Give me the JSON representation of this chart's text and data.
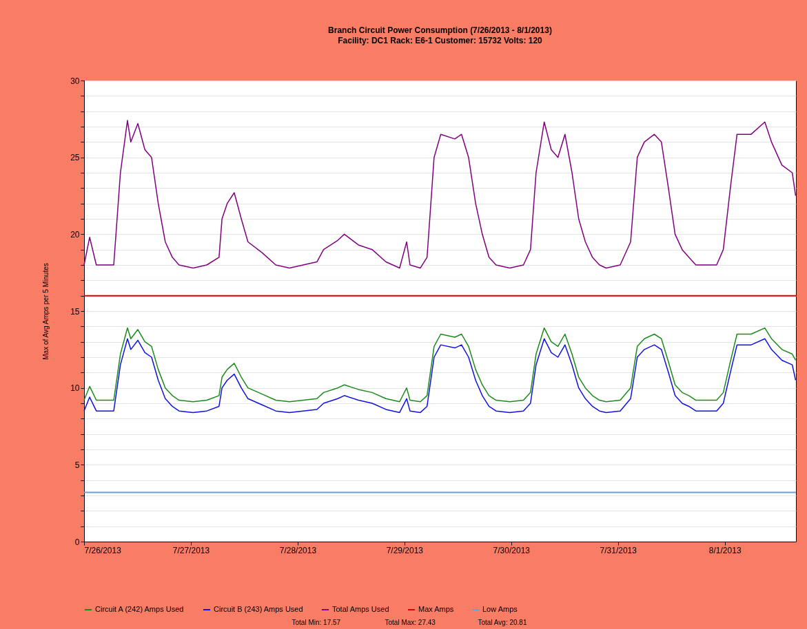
{
  "chart_data": {
    "type": "line",
    "title": "Branch Circuit Power Consumption (7/26/2013 - 8/1/2013)",
    "subtitle": "Facility: DC1  Rack: E6-1  Customer: 15732  Volts: 120",
    "ylabel": "Max of Avg Amps per 5 Minutes",
    "x": [
      "2013-07-26T00:00",
      "2013-07-26T01:15",
      "2013-07-26T02:45",
      "2013-07-26T06:40",
      "2013-07-26T08:10",
      "2013-07-26T09:45",
      "2013-07-26T10:30",
      "2013-07-26T12:05",
      "2013-07-26T13:40",
      "2013-07-26T15:10",
      "2013-07-26T16:40",
      "2013-07-26T18:15",
      "2013-07-26T19:50",
      "2013-07-26T21:20",
      "2013-07-27T00:30",
      "2013-07-27T03:35",
      "2013-07-27T06:20",
      "2013-07-27T07:00",
      "2013-07-27T08:10",
      "2013-07-27T09:45",
      "2013-07-27T11:20",
      "2013-07-27T12:50",
      "2013-07-27T16:00",
      "2013-07-27T19:05",
      "2013-07-27T22:10",
      "2013-07-28T01:15",
      "2013-07-28T04:20",
      "2013-07-28T05:50",
      "2013-07-28T09:00",
      "2013-07-28T10:30",
      "2013-07-28T13:40",
      "2013-07-28T16:45",
      "2013-07-28T19:50",
      "2013-07-28T22:55",
      "2013-07-29T00:30",
      "2013-07-29T01:15",
      "2013-07-29T03:35",
      "2013-07-29T05:05",
      "2013-07-29T06:40",
      "2013-07-29T08:10",
      "2013-07-29T11:20",
      "2013-07-29T12:50",
      "2013-07-29T14:25",
      "2013-07-29T16:00",
      "2013-07-29T17:30",
      "2013-07-29T19:00",
      "2013-07-29T20:35",
      "2013-07-29T23:40",
      "2013-07-30T02:45",
      "2013-07-30T04:20",
      "2013-07-30T05:35",
      "2013-07-30T07:25",
      "2013-07-30T09:00",
      "2013-07-30T10:30",
      "2013-07-30T12:05",
      "2013-07-30T13:40",
      "2013-07-30T15:10",
      "2013-07-30T16:40",
      "2013-07-30T18:15",
      "2013-07-30T19:50",
      "2013-07-30T21:20",
      "2013-07-31T00:30",
      "2013-07-31T02:50",
      "2013-07-31T04:20",
      "2013-07-31T05:55",
      "2013-07-31T08:10",
      "2013-07-31T09:45",
      "2013-07-31T11:20",
      "2013-07-31T12:50",
      "2013-07-31T14:25",
      "2013-07-31T15:55",
      "2013-07-31T17:30",
      "2013-07-31T22:10",
      "2013-07-31T23:40",
      "2013-08-01T01:15",
      "2013-08-01T02:45",
      "2013-08-01T05:55",
      "2013-08-01T09:00",
      "2013-08-01T10:30",
      "2013-08-01T12:50",
      "2013-08-01T15:10",
      "2013-08-01T15:55"
    ],
    "series": [
      {
        "name": "Circuit A (242) Amps Used",
        "color": "#1a8a1a",
        "values": [
          9.2,
          10.1,
          9.2,
          9.2,
          12.2,
          13.9,
          13.2,
          13.8,
          13.0,
          12.7,
          11.2,
          10.0,
          9.5,
          9.2,
          9.1,
          9.2,
          9.5,
          10.7,
          11.2,
          11.6,
          10.7,
          10.0,
          9.6,
          9.2,
          9.1,
          9.2,
          9.3,
          9.7,
          10.0,
          10.2,
          9.9,
          9.7,
          9.3,
          9.1,
          10.0,
          9.2,
          9.1,
          9.5,
          12.7,
          13.5,
          13.3,
          13.5,
          12.7,
          11.2,
          10.2,
          9.5,
          9.2,
          9.1,
          9.2,
          9.7,
          12.2,
          13.9,
          13.0,
          12.7,
          13.5,
          12.2,
          10.7,
          10.0,
          9.5,
          9.2,
          9.1,
          9.2,
          10.0,
          12.7,
          13.2,
          13.5,
          13.2,
          11.7,
          10.2,
          9.7,
          9.5,
          9.2,
          9.2,
          9.7,
          11.7,
          13.5,
          13.5,
          13.9,
          13.2,
          12.5,
          12.2,
          11.8
        ]
      },
      {
        "name": "Circuit B (243) Amps Used",
        "color": "#1010e0",
        "values": [
          8.5,
          9.4,
          8.5,
          8.5,
          11.5,
          13.2,
          12.5,
          13.1,
          12.3,
          12.0,
          10.5,
          9.3,
          8.8,
          8.5,
          8.4,
          8.5,
          8.8,
          10.0,
          10.5,
          10.9,
          10.0,
          9.3,
          8.9,
          8.5,
          8.4,
          8.5,
          8.6,
          9.0,
          9.3,
          9.5,
          9.2,
          9.0,
          8.6,
          8.4,
          9.3,
          8.5,
          8.4,
          8.8,
          12.0,
          12.8,
          12.6,
          12.8,
          12.0,
          10.5,
          9.5,
          8.8,
          8.5,
          8.4,
          8.5,
          9.0,
          11.5,
          13.2,
          12.3,
          12.0,
          12.8,
          11.5,
          10.0,
          9.3,
          8.8,
          8.5,
          8.4,
          8.5,
          9.3,
          12.0,
          12.5,
          12.8,
          12.5,
          11.0,
          9.5,
          9.0,
          8.8,
          8.5,
          8.5,
          9.0,
          11.0,
          12.8,
          12.8,
          13.2,
          12.5,
          11.8,
          11.5,
          10.5
        ]
      },
      {
        "name": "Total Amps Used",
        "color": "#800080",
        "values": [
          18,
          19.8,
          18,
          18,
          24,
          27.4,
          26,
          27.2,
          25.5,
          25,
          22,
          19.5,
          18.5,
          18,
          17.8,
          18,
          18.5,
          21,
          22,
          22.7,
          21,
          19.5,
          18.8,
          18,
          17.8,
          18,
          18.2,
          19,
          19.6,
          20,
          19.3,
          19,
          18.2,
          17.8,
          19.5,
          18,
          17.8,
          18.5,
          25,
          26.5,
          26.2,
          26.5,
          25,
          22,
          20,
          18.5,
          18,
          17.8,
          18,
          19,
          24,
          27.3,
          25.5,
          25,
          26.5,
          24,
          21,
          19.5,
          18.5,
          18,
          17.8,
          18,
          19.5,
          25,
          26,
          26.5,
          26,
          23,
          20,
          19,
          18.5,
          18,
          18,
          19,
          23,
          26.5,
          26.5,
          27.3,
          26,
          24.5,
          24,
          22.5
        ]
      }
    ],
    "xlim": [
      "2013-07-26T00:00",
      "2013-08-01T16:00"
    ],
    "xticks": [
      {
        "value": "2013-07-26T00:00",
        "label": "7/26/2013"
      },
      {
        "value": "2013-07-27T00:00",
        "label": "7/27/2013"
      },
      {
        "value": "2013-07-28T00:00",
        "label": "7/28/2013"
      },
      {
        "value": "2013-07-29T00:00",
        "label": "7/29/2013"
      },
      {
        "value": "2013-07-30T00:00",
        "label": "7/30/2013"
      },
      {
        "value": "2013-07-31T00:00",
        "label": "7/31/2013"
      },
      {
        "value": "2013-08-01T00:00",
        "label": "8/1/2013"
      }
    ],
    "ylim": [
      0,
      30
    ],
    "yticks": [
      0,
      {
        "value": 1,
        "label": null
      },
      {
        "value": 2,
        "label": null
      },
      {
        "value": 3,
        "label": null
      },
      {
        "value": 4,
        "label": null
      },
      5,
      {
        "value": 6,
        "label": null
      },
      {
        "value": 7,
        "label": null
      },
      {
        "value": 8,
        "label": null
      },
      {
        "value": 9,
        "label": null
      },
      10,
      {
        "value": 11,
        "label": null
      },
      {
        "value": 12,
        "label": null
      },
      {
        "value": 13,
        "label": null
      },
      {
        "value": 14,
        "label": null
      },
      15,
      {
        "value": 16,
        "label": null
      },
      {
        "value": 17,
        "label": null
      },
      {
        "value": 18,
        "label": null
      },
      {
        "value": 19,
        "label": null
      },
      20,
      {
        "value": 21,
        "label": null
      },
      {
        "value": 22,
        "label": null
      },
      {
        "value": 23,
        "label": null
      },
      {
        "value": 24,
        "label": null
      },
      25,
      {
        "value": 26,
        "label": null
      },
      {
        "value": 27,
        "label": null
      },
      {
        "value": 28,
        "label": null
      },
      {
        "value": 29,
        "label": null
      },
      30
    ],
    "ref_lines": [
      {
        "axis": "y",
        "value": 16,
        "label": "Max Amps",
        "color": "#e00000"
      },
      {
        "axis": "y",
        "value": 3.2,
        "label": "Low Amps",
        "color": "#6a9fd0"
      }
    ],
    "grid": "y",
    "legend": "bottom",
    "marker": "none",
    "line_style": "solid",
    "annotations": [
      "Total Min: 17.57",
      "Total Max: 27.43",
      "Total Avg: 20.81"
    ]
  }
}
